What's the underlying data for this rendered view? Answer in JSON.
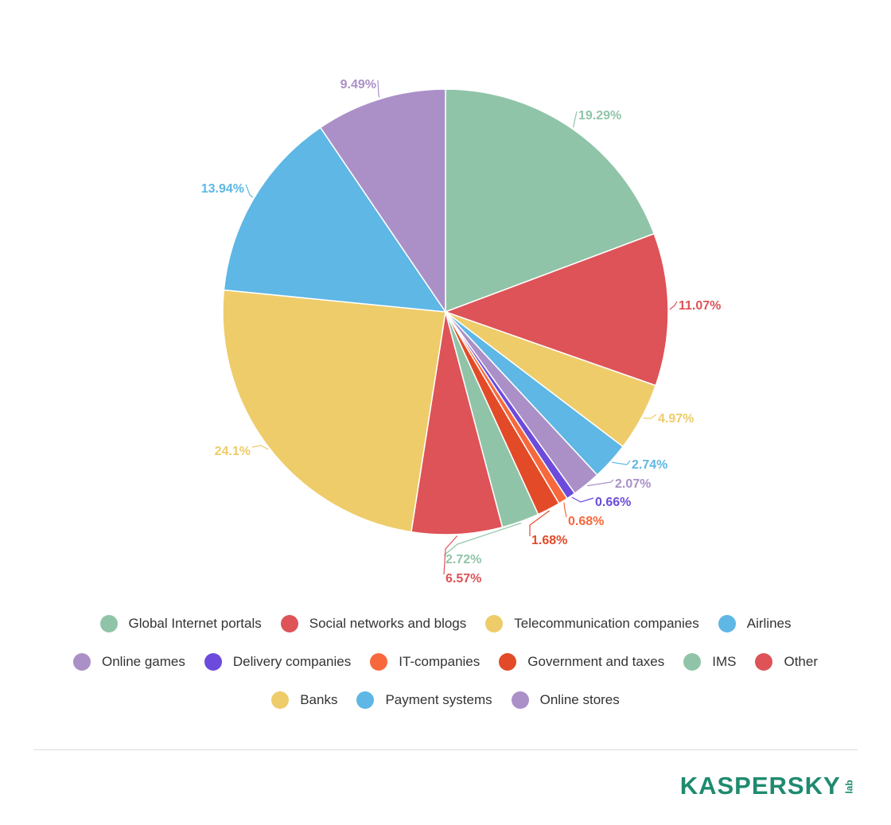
{
  "chart_data": {
    "type": "pie",
    "title": "",
    "slices": [
      {
        "name": "Global Internet portals",
        "value": 19.29,
        "label": "19.29%",
        "color": "#90c4a8"
      },
      {
        "name": "Social networks and blogs",
        "value": 11.07,
        "label": "11.07%",
        "color": "#dd5357"
      },
      {
        "name": "Telecommunication companies",
        "value": 4.97,
        "label": "4.97%",
        "color": "#eecc6a"
      },
      {
        "name": "Airlines",
        "value": 2.74,
        "label": "2.74%",
        "color": "#5eb7e4"
      },
      {
        "name": "Online games",
        "value": 2.07,
        "label": "2.07%",
        "color": "#ab90c8"
      },
      {
        "name": "Delivery companies",
        "value": 0.66,
        "label": "0.66%",
        "color": "#6c4bdc"
      },
      {
        "name": "IT-companies",
        "value": 0.68,
        "label": "0.68%",
        "color": "#f7693c"
      },
      {
        "name": "Government and taxes",
        "value": 1.68,
        "label": "1.68%",
        "color": "#e24a28"
      },
      {
        "name": "IMS",
        "value": 2.72,
        "label": "2.72%",
        "color": "#90c4a8"
      },
      {
        "name": "Other",
        "value": 6.57,
        "label": "6.57%",
        "color": "#dd5357"
      },
      {
        "name": "Banks",
        "value": 24.1,
        "label": "24.1%",
        "color": "#eecc6a"
      },
      {
        "name": "Payment systems",
        "value": 13.94,
        "label": "13.94%",
        "color": "#5eb7e4"
      },
      {
        "name": "Online stores",
        "value": 9.49,
        "label": "9.49%",
        "color": "#ab90c8"
      }
    ],
    "legend_placement": "bottom",
    "legend_rows": [
      [
        0,
        1,
        2,
        3
      ],
      [
        4,
        5,
        6,
        7,
        8,
        9
      ],
      [
        10,
        11,
        12
      ]
    ]
  },
  "logo": {
    "main": "KASPERSKY",
    "sub": "lab"
  }
}
